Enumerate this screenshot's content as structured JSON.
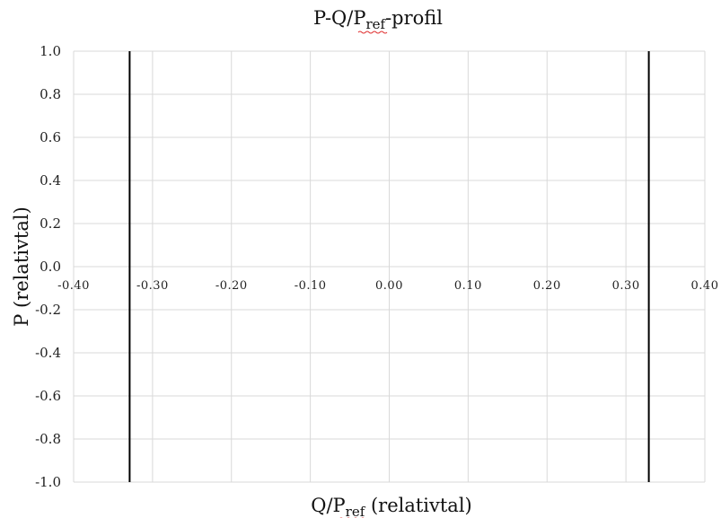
{
  "chart_data": {
    "type": "line",
    "title": {
      "main": "P-Q/P",
      "sub": "ref",
      "suffix": "-profil"
    },
    "xlabel": {
      "main": "Q/P",
      "sub": "ref",
      "suffix": " (relativtal)"
    },
    "ylabel": "P (relativtal)",
    "xlim": [
      -0.4,
      0.4
    ],
    "ylim": [
      -1.0,
      1.0
    ],
    "x_ticks": [
      -0.4,
      -0.3,
      -0.2,
      -0.1,
      0.0,
      0.1,
      0.2,
      0.3,
      0.4
    ],
    "y_ticks": [
      1.0,
      0.8,
      0.6,
      0.4,
      0.2,
      0.0,
      -0.2,
      -0.4,
      -0.6,
      -0.8,
      -1.0
    ],
    "x_tick_labels": [
      "-0.40",
      "-0.30",
      "-0.20",
      "-0.10",
      "0.00",
      "0.10",
      "0.20",
      "0.30",
      "0.40"
    ],
    "y_tick_labels": [
      "1.0",
      "0.8",
      "0.6",
      "0.4",
      "0.2",
      "0.0",
      "-0.2",
      "-0.4",
      "-0.6",
      "-0.8",
      "-1.0"
    ],
    "grid": true,
    "series": [
      {
        "x": [
          -0.329,
          -0.329
        ],
        "y": [
          -1.0,
          1.0
        ],
        "color": "#000000"
      },
      {
        "x": [
          0.329,
          0.329
        ],
        "y": [
          -1.0,
          1.0
        ],
        "color": "#000000"
      }
    ],
    "colors": {
      "grid": "#d9d9d9",
      "line": "#000000",
      "spellcheck": "#e03030"
    }
  }
}
